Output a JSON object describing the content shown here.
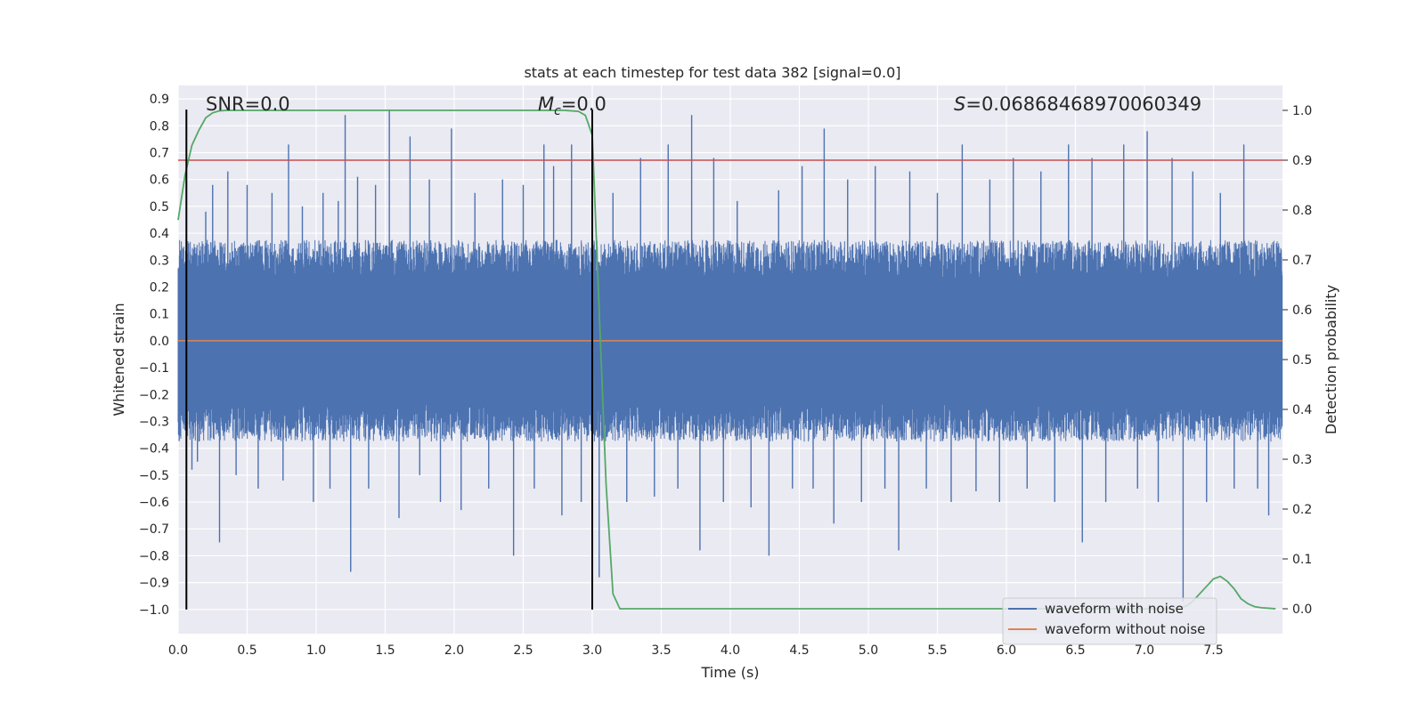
{
  "chart_data": {
    "type": "line",
    "title": "stats at each timestep for test data 382 [signal=0.0]",
    "xlabel": "Time (s)",
    "ylabel_left": "Whitened strain",
    "ylabel_right": "Detection probability",
    "xlim": [
      0.0,
      8.0
    ],
    "ylim_left": [
      -1.09,
      0.95
    ],
    "ylim_right": [
      -0.05,
      1.05
    ],
    "x_ticks": [
      "0.0",
      "0.5",
      "1.0",
      "1.5",
      "2.0",
      "2.5",
      "3.0",
      "3.5",
      "4.0",
      "4.5",
      "5.0",
      "5.5",
      "6.0",
      "6.5",
      "7.0",
      "7.5"
    ],
    "y_ticks_left": [
      "0.9",
      "0.8",
      "0.7",
      "0.6",
      "0.5",
      "0.4",
      "0.3",
      "0.2",
      "0.1",
      "0.0",
      "-0.1",
      "-0.2",
      "-0.3",
      "-0.4",
      "-0.5",
      "-0.6",
      "-0.7",
      "-0.8",
      "-0.9",
      "-1.0"
    ],
    "y_ticks_right": [
      "1.0",
      "0.9",
      "0.8",
      "0.7",
      "0.6",
      "0.5",
      "0.4",
      "0.3",
      "0.2",
      "0.1",
      "0.0"
    ],
    "grid": true,
    "legend_position": "lower-right",
    "annotations": {
      "snr_label": "SNR=0.0",
      "mc_label": "=0.0",
      "mc_symbol": "M",
      "mc_subscript": "c",
      "s_label": "=0.06868468970060349",
      "s_symbol": "S"
    },
    "series": [
      {
        "name": "waveform with noise",
        "color": "#4c72b0",
        "description_values": {
          "typical_band": [
            -0.3,
            0.3
          ],
          "peak_max": 0.86,
          "peak_min": -0.97,
          "spikes": [
            [
              0.06,
              0.45
            ],
            [
              0.1,
              -0.48
            ],
            [
              0.14,
              -0.45
            ],
            [
              0.2,
              0.48
            ],
            [
              0.25,
              0.58
            ],
            [
              0.3,
              -0.75
            ],
            [
              0.36,
              0.63
            ],
            [
              0.42,
              -0.5
            ],
            [
              0.5,
              0.58
            ],
            [
              0.58,
              -0.55
            ],
            [
              0.68,
              0.55
            ],
            [
              0.76,
              -0.52
            ],
            [
              0.8,
              0.73
            ],
            [
              0.9,
              0.5
            ],
            [
              0.98,
              -0.6
            ],
            [
              1.05,
              0.55
            ],
            [
              1.1,
              -0.55
            ],
            [
              1.16,
              0.52
            ],
            [
              1.21,
              0.84
            ],
            [
              1.25,
              -0.86
            ],
            [
              1.3,
              0.61
            ],
            [
              1.38,
              -0.55
            ],
            [
              1.43,
              0.58
            ],
            [
              1.53,
              0.86
            ],
            [
              1.6,
              -0.66
            ],
            [
              1.68,
              0.76
            ],
            [
              1.75,
              -0.5
            ],
            [
              1.82,
              0.6
            ],
            [
              1.9,
              -0.6
            ],
            [
              1.98,
              0.79
            ],
            [
              2.05,
              -0.63
            ],
            [
              2.15,
              0.55
            ],
            [
              2.25,
              -0.55
            ],
            [
              2.35,
              0.6
            ],
            [
              2.43,
              -0.8
            ],
            [
              2.5,
              0.58
            ],
            [
              2.58,
              -0.55
            ],
            [
              2.65,
              0.73
            ],
            [
              2.72,
              0.65
            ],
            [
              2.78,
              -0.65
            ],
            [
              2.85,
              0.73
            ],
            [
              2.92,
              -0.6
            ],
            [
              3.05,
              -0.88
            ],
            [
              3.15,
              0.55
            ],
            [
              3.25,
              -0.6
            ],
            [
              3.35,
              0.68
            ],
            [
              3.45,
              -0.58
            ],
            [
              3.55,
              0.73
            ],
            [
              3.62,
              -0.55
            ],
            [
              3.72,
              0.84
            ],
            [
              3.78,
              -0.78
            ],
            [
              3.88,
              0.68
            ],
            [
              3.95,
              -0.6
            ],
            [
              4.05,
              0.52
            ],
            [
              4.15,
              -0.62
            ],
            [
              4.28,
              -0.8
            ],
            [
              4.35,
              0.56
            ],
            [
              4.45,
              -0.55
            ],
            [
              4.52,
              0.65
            ],
            [
              4.6,
              -0.55
            ],
            [
              4.68,
              0.79
            ],
            [
              4.75,
              -0.68
            ],
            [
              4.85,
              0.6
            ],
            [
              4.95,
              -0.6
            ],
            [
              5.05,
              0.65
            ],
            [
              5.12,
              -0.55
            ],
            [
              5.22,
              -0.78
            ],
            [
              5.3,
              0.63
            ],
            [
              5.42,
              -0.55
            ],
            [
              5.5,
              0.55
            ],
            [
              5.6,
              -0.6
            ],
            [
              5.68,
              0.73
            ],
            [
              5.78,
              -0.56
            ],
            [
              5.88,
              0.6
            ],
            [
              5.95,
              -0.6
            ],
            [
              6.05,
              0.68
            ],
            [
              6.15,
              -0.55
            ],
            [
              6.25,
              0.63
            ],
            [
              6.35,
              -0.6
            ],
            [
              6.45,
              0.73
            ],
            [
              6.55,
              -0.75
            ],
            [
              6.62,
              0.68
            ],
            [
              6.72,
              -0.6
            ],
            [
              6.85,
              0.73
            ],
            [
              6.95,
              -0.55
            ],
            [
              7.02,
              0.78
            ],
            [
              7.1,
              -0.6
            ],
            [
              7.2,
              0.68
            ],
            [
              7.28,
              -0.97
            ],
            [
              7.35,
              0.63
            ],
            [
              7.45,
              -0.6
            ],
            [
              7.55,
              0.55
            ],
            [
              7.65,
              -0.55
            ],
            [
              7.72,
              0.73
            ],
            [
              7.82,
              -0.55
            ],
            [
              7.9,
              -0.65
            ]
          ]
        }
      },
      {
        "name": "waveform without noise",
        "color": "#dd8452",
        "x": [
          0.0,
          8.0
        ],
        "y": [
          0.0,
          0.0
        ]
      },
      {
        "name": "",
        "axis": "right",
        "color": "#55a868",
        "x": [
          0.0,
          0.05,
          0.1,
          0.15,
          0.2,
          0.25,
          0.3,
          0.35,
          0.4,
          0.5,
          1.0,
          1.5,
          2.0,
          2.5,
          2.8,
          2.9,
          2.95,
          3.0,
          3.05,
          3.1,
          3.15,
          3.2,
          3.3,
          4.0,
          5.0,
          6.0,
          7.0,
          7.2,
          7.3,
          7.35,
          7.4,
          7.45,
          7.5,
          7.55,
          7.6,
          7.65,
          7.7,
          7.75,
          7.8,
          7.85,
          7.9,
          7.95
        ],
        "y": [
          0.78,
          0.87,
          0.93,
          0.96,
          0.985,
          0.995,
          0.999,
          1.0,
          1.0,
          1.0,
          1.0,
          1.0,
          1.0,
          1.0,
          1.0,
          0.998,
          0.99,
          0.95,
          0.6,
          0.25,
          0.03,
          0.0,
          0.0,
          0.0,
          0.0,
          0.0,
          0.0,
          0.0,
          0.005,
          0.015,
          0.03,
          0.045,
          0.06,
          0.065,
          0.055,
          0.04,
          0.02,
          0.01,
          0.004,
          0.002,
          0.001,
          0.0
        ]
      },
      {
        "name": "",
        "axis": "right",
        "color": "#c44e52",
        "x": [
          0.0,
          8.0
        ],
        "y": [
          0.9,
          0.9
        ]
      }
    ],
    "vertical_lines": [
      {
        "x": 0.06,
        "ymin": -1.0,
        "ymax": 0.86,
        "color": "#000000"
      },
      {
        "x": 3.0,
        "ymin": -1.0,
        "ymax": 0.86,
        "color": "#000000"
      }
    ]
  }
}
